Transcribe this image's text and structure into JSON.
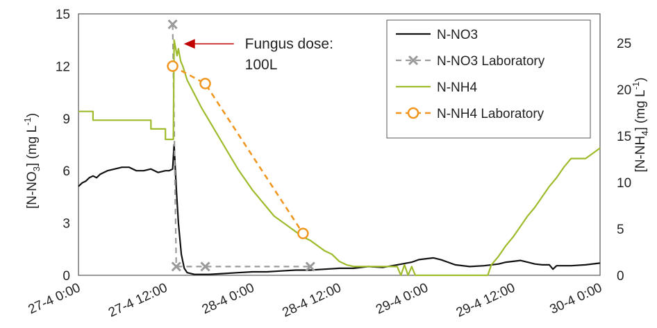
{
  "chart_data": {
    "type": "line",
    "ylabel_left": {
      "prefix": "[N-NO",
      "sub": "3",
      "suffix": "]  (mg L",
      "sup": "-1",
      "close": ")"
    },
    "ylabel_right": {
      "prefix": "[N-NH",
      "sub": "4",
      "suffix": "]  (mg L",
      "sup": "-1",
      "close": ")"
    },
    "xlim": [
      0,
      72
    ],
    "ylim_left": [
      0,
      15
    ],
    "ylim_right": [
      0,
      28.125
    ],
    "x_ticks": [
      {
        "x": 0,
        "label": "27-4 0:00"
      },
      {
        "x": 12,
        "label": "27-4 12:00"
      },
      {
        "x": 24,
        "label": "28-4 0:00"
      },
      {
        "x": 36,
        "label": "28-4 12:00"
      },
      {
        "x": 48,
        "label": "29-4 0:00"
      },
      {
        "x": 60,
        "label": "29-4 12:00"
      },
      {
        "x": 72,
        "label": "30-4 0:00"
      }
    ],
    "y_ticks_left": [
      "0",
      "3",
      "6",
      "9",
      "12",
      "15"
    ],
    "y_ticks_right": [
      "0",
      "5",
      "10",
      "15",
      "20",
      "25"
    ],
    "legend_position": "top-right",
    "legend": [
      "N-NO3",
      "N-NO3 Laboratory",
      "N-NH4",
      "N-NH4 Laboratory"
    ],
    "annotation": {
      "line1": "Fungus dose:",
      "line2": "100L",
      "target": [
        13.2,
        13.4
      ]
    },
    "colors": {
      "nno3": "#111111",
      "nno3_lab": "#9a9a9a",
      "nnh4": "#9dbb2a",
      "nnh4_lab": "#f0961e",
      "arrow": "#c00000",
      "frame": "#555555"
    },
    "series": [
      {
        "name": "N-NO3",
        "axis": "left",
        "x": [
          0,
          0.5,
          1,
          1.5,
          2,
          2.5,
          3,
          3.5,
          4,
          5,
          6,
          7,
          8,
          9,
          10,
          11,
          12,
          12.5,
          13,
          13.2,
          13.5,
          13.8,
          14.2,
          14.6,
          15,
          16,
          18,
          20,
          22,
          24,
          26,
          28,
          30,
          32,
          34,
          36,
          38,
          40,
          42,
          44,
          46,
          47,
          48,
          49,
          50,
          51,
          52,
          54,
          56,
          58,
          59,
          60,
          61,
          62,
          63,
          64,
          65,
          65.5,
          66,
          68,
          70,
          72
        ],
        "y": [
          5.1,
          5.3,
          5.4,
          5.6,
          5.7,
          5.6,
          5.8,
          5.9,
          6.0,
          6.1,
          6.2,
          6.2,
          6.0,
          6.0,
          6.1,
          5.9,
          6.0,
          6.0,
          6.1,
          7.5,
          5.0,
          3.0,
          1.2,
          0.4,
          0.15,
          0.05,
          0.05,
          0.1,
          0.15,
          0.2,
          0.2,
          0.25,
          0.3,
          0.3,
          0.35,
          0.4,
          0.4,
          0.5,
          0.45,
          0.6,
          0.75,
          0.9,
          0.95,
          1.0,
          0.9,
          0.75,
          0.6,
          0.5,
          0.55,
          0.65,
          0.75,
          0.8,
          0.85,
          0.75,
          0.65,
          0.6,
          0.6,
          0.35,
          0.55,
          0.55,
          0.6,
          0.7
        ]
      },
      {
        "name": "N-NO3 Laboratory",
        "axis": "left",
        "x": [
          13.0,
          13.5,
          17.5,
          32.0
        ],
        "y": [
          14.4,
          0.5,
          0.5,
          0.5
        ]
      },
      {
        "name": "N-NH4",
        "axis": "left",
        "x": [
          0,
          2,
          2,
          10,
          10,
          12,
          12,
          13.1,
          13.2,
          13.6,
          13.8,
          14.1,
          14.4,
          15,
          16,
          17,
          18,
          19,
          20,
          21,
          22,
          23,
          24,
          25,
          26,
          27,
          28,
          29,
          30,
          31,
          32,
          33,
          34,
          35,
          36,
          37,
          38,
          40,
          44,
          44.5,
          45,
          45.5,
          46,
          46.5,
          47,
          56.5,
          57,
          58,
          59,
          60,
          61,
          62,
          63,
          64,
          65,
          66,
          67,
          68,
          69,
          70,
          71,
          72
        ],
        "y": [
          9.4,
          9.4,
          8.9,
          8.9,
          8.4,
          8.4,
          7.8,
          7.8,
          13.5,
          12.6,
          13.0,
          12.3,
          12.0,
          11.2,
          10.4,
          9.6,
          8.9,
          8.2,
          7.5,
          6.8,
          6.1,
          5.5,
          4.9,
          4.4,
          3.9,
          3.4,
          3.1,
          2.8,
          2.5,
          2.2,
          2.0,
          1.7,
          1.4,
          1.2,
          0.8,
          0.6,
          0.5,
          0.5,
          0.5,
          0.0,
          0.6,
          0.0,
          0.5,
          0.0,
          0.0,
          0.0,
          0.6,
          1.1,
          1.7,
          2.2,
          2.8,
          3.4,
          3.9,
          4.5,
          5.1,
          5.6,
          6.2,
          6.7,
          6.7,
          6.7,
          7.0,
          7.3
        ]
      },
      {
        "name": "N-NH4 Laboratory",
        "axis": "left",
        "x": [
          13.0,
          17.5,
          31.0
        ],
        "y": [
          12.0,
          11.0,
          2.4
        ]
      }
    ]
  }
}
